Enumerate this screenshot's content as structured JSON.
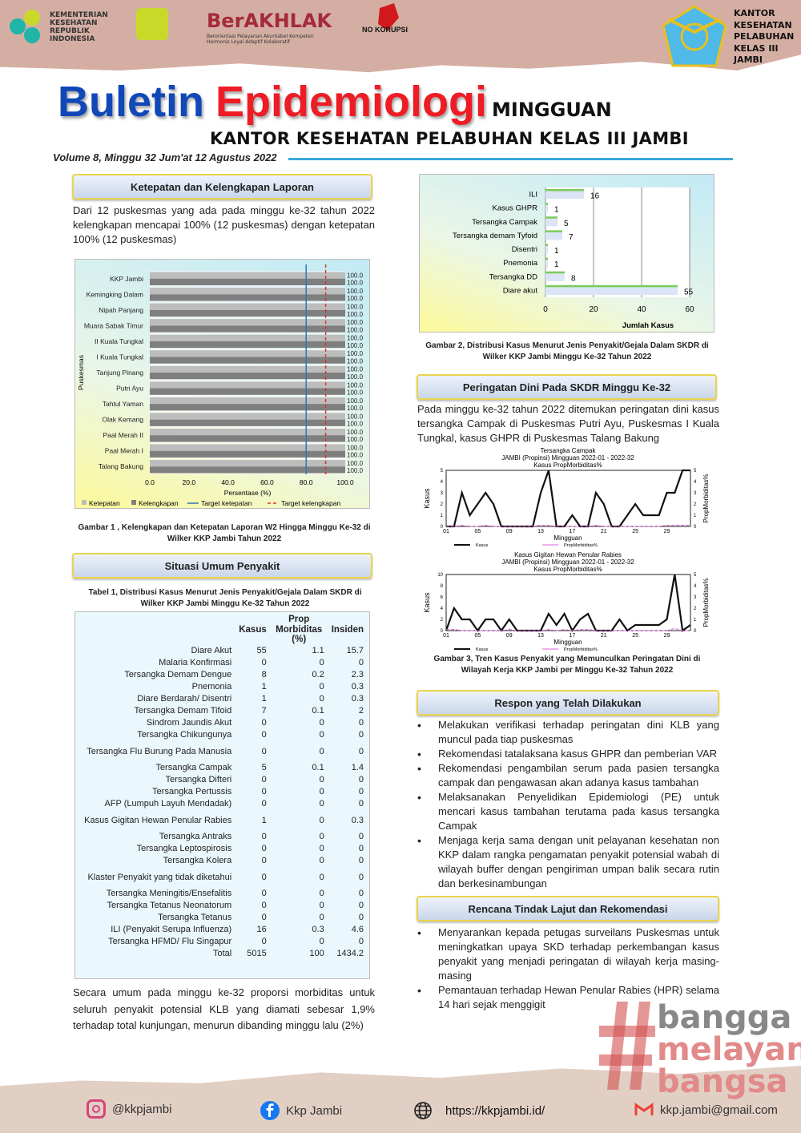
{
  "header": {
    "ministry": "KEMENTERIAN KESEHATAN REPUBLIK INDONESIA",
    "berakhlak": "BerAKHLAK",
    "berakhlak_tagline": "Berorientasi Pelayanan Akuntabel Kompeten Harmonis Loyal Adaptif Kolaboratif",
    "nokorupsi": "NO KORUPSI",
    "office_logo_text": "KANTOR KESEHATAN PELABUHAN KELAS III JAMBI",
    "title_a": "Buletin",
    "title_b": "Epidemiologi",
    "title_c": "MINGGUAN",
    "subtitle": "KANTOR KESEHATAN PELABUHAN KELAS III JAMBI",
    "volume": "Volume 8, Minggu 32 Jum'at 12 Agustus 2022"
  },
  "colors": {
    "title_blue": "#1048b8",
    "title_red": "#ee1c25",
    "header_bg": "#d5aea3",
    "accent_line": "#3aa8dc"
  },
  "left": {
    "sec1": "Ketepatan dan Kelengkapan Laporan",
    "para1": "Dari 12 puskesmas yang ada pada minggu ke-32 tahun 2022 kelengkapan mencapai 100% (12 puskesmas) dengan ketepatan 100% (12 puskesmas)",
    "cap1": "Gambar 1 ,  Kelengkapan dan Ketepatan Laporan W2 Hingga Minggu Ke-32 di Wilker KKP Jambi Tahun 2022",
    "sec2": "Situasi Umum Penyakit",
    "table_caption": "Tabel 1,    Distribusi Kasus Menurut Jenis Penyakit/Gejala Dalam SKDR di Wilker KKP Jambi Minggu Ke-32 Tahun 2022",
    "table": {
      "headers": [
        "",
        "Kasus",
        "Prop Morbiditas (%)",
        "Insiden"
      ],
      "rows": [
        [
          "Diare Akut",
          "55",
          "1.1",
          "15.7"
        ],
        [
          "Malaria Konfirmasi",
          "0",
          "0",
          "0"
        ],
        [
          "Tersangka Demam Dengue",
          "8",
          "0.2",
          "2.3"
        ],
        [
          "Pnemonia",
          "1",
          "0",
          "0.3"
        ],
        [
          "Diare Berdarah/ Disentri",
          "1",
          "0",
          "0.3"
        ],
        [
          "Tersangka Demam Tifoid",
          "7",
          "0.1",
          "2"
        ],
        [
          "Sindrom Jaundis Akut",
          "0",
          "0",
          "0"
        ],
        [
          "Tersangka Chikungunya",
          "0",
          "0",
          "0"
        ],
        [
          "Tersangka Flu Burung Pada Manusia",
          "0",
          "0",
          "0"
        ],
        [
          "Tersangka Campak",
          "5",
          "0.1",
          "1.4"
        ],
        [
          "Tersangka Difteri",
          "0",
          "0",
          "0"
        ],
        [
          "Tersangka Pertussis",
          "0",
          "0",
          "0"
        ],
        [
          "AFP (Lumpuh Layuh Mendadak)",
          "0",
          "0",
          "0"
        ],
        [
          "Kasus Gigitan Hewan Penular Rabies",
          "1",
          "0",
          "0.3"
        ],
        [
          "Tersangka Antraks",
          "0",
          "0",
          "0"
        ],
        [
          "Tersangka Leptospirosis",
          "0",
          "0",
          "0"
        ],
        [
          "Tersangka Kolera",
          "0",
          "0",
          "0"
        ],
        [
          "Klaster Penyakit yang tidak diketahui",
          "0",
          "0",
          "0"
        ],
        [
          "Tersangka Meningitis/Ensefalitis",
          "0",
          "0",
          "0"
        ],
        [
          "Tersangka Tetanus Neonatorum",
          "0",
          "0",
          "0"
        ],
        [
          "Tersangka Tetanus",
          "0",
          "0",
          "0"
        ],
        [
          "ILI (Penyakit Serupa Influenza)",
          "16",
          "0.3",
          "4.6"
        ],
        [
          "Tersangka HFMD/ Flu Singapur",
          "0",
          "0",
          "0"
        ],
        [
          "Total",
          "5015",
          "100",
          "1434.2"
        ]
      ]
    },
    "para2": "Secara umum pada minggu ke-32 proporsi morbiditas untuk seluruh penyakit potensial KLB yang diamati sebesar 1,9% terhadap total kunjungan, menurun dibanding minggu lalu (2%)"
  },
  "right": {
    "cap2": "Gambar 2, Distribusi Kasus Menurut Jenis Penyakit/Gejala Dalam SKDR di Wilker  KKP Jambi  Minggu Ke-32 Tahun 2022",
    "sec3": "Peringatan Dini Pada SKDR Minggu Ke-32",
    "para3": "Pada minggu ke-32 tahun 2022 ditemukan peringatan dini kasus tersangka Campak di Puskesmas Putri Ayu, Puskesmas I Kuala Tungkal, kasus GHPR di Puskesmas Talang Bakung",
    "cap3": "Gambar 3, Tren Kasus Penyakit yang Memunculkan Peringatan Dini  di Wilayah Kerja KKP Jambi per Minggu Ke-32 Tahun 2022",
    "sec4": "Respon yang Telah Dilakukan",
    "respon": [
      "Melakukan verifikasi terhadap peringatan dini KLB yang muncul pada tiap puskesmas",
      "Rekomendasi tatalaksana kasus GHPR dan pemberian VAR",
      "Rekomendasi pengambilan serum pada pasien tersangka campak dan pengawasan akan adanya kasus tambahan",
      "Melaksanakan Penyelidikan Epidemiologi (PE) untuk mencari kasus tambahan terutama pada kasus tersangka Campak",
      "Menjaga kerja sama dengan unit pelayanan kesehatan non KKP dalam rangka pengamatan penyakit potensial wabah di wilayah buffer dengan pengiriman umpan balik secara rutin dan berkesinambungan"
    ],
    "sec5": "Rencana Tindak Lajut dan Rekomendasi",
    "rencana": [
      "Menyarankan kepada petugas surveilans Puskesmas untuk meningkatkan upaya SKD terhadap perkembangan kasus penyakit yang menjadi peringatan di wilayah kerja masing-masing",
      "Pemantauan terhadap Hewan Penular Rabies (HPR) selama 14 hari sejak menggigit"
    ]
  },
  "watermark": {
    "line1": "bangga",
    "line2": "melayani",
    "line3": "bangsa"
  },
  "footer": {
    "instagram": "@kkpjambi",
    "facebook": "Kkp Jambi",
    "website": "https://kkpjambi.id/",
    "email": "kkp.jambi@gmail.com"
  },
  "chart_data": [
    {
      "type": "bar",
      "orientation": "horizontal",
      "categories": [
        "KKP Jambi",
        "Kemingking Dalam",
        "Nipah Panjang",
        "Muara Sabak Timur",
        "II Kuala Tungkal",
        "I Kuala Tungkal",
        "Tanjung Pinang",
        "Putri Ayu",
        "Tahtul Yaman",
        "Olak Kemang",
        "Paal Merah II",
        "Paal Merah I",
        "Talang Bakung"
      ],
      "series": [
        {
          "name": "Ketepatan",
          "color": "#bdbdbd",
          "values": [
            100,
            100,
            100,
            100,
            100,
            100,
            100,
            100,
            100,
            100,
            100,
            100,
            100
          ]
        },
        {
          "name": "Kelengkapan",
          "color": "#7f7f7f",
          "values": [
            100,
            100,
            100,
            100,
            100,
            100,
            100,
            100,
            100,
            100,
            100,
            100,
            100
          ]
        }
      ],
      "reference_lines": [
        {
          "name": "Target ketepatan",
          "value": 80,
          "color": "#2e75b6",
          "style": "solid"
        },
        {
          "name": "Target kelengkapan",
          "value": 90,
          "color": "#e03030",
          "style": "dashed"
        }
      ],
      "xlabel": "Persentase (%)",
      "ylabel": "Puskesmas",
      "xlim": [
        0,
        100
      ],
      "xticks": [
        "0.0",
        "20.0",
        "40.0",
        "60.0",
        "80.0",
        "100.0"
      ],
      "legend": "bottom",
      "data_labels": "100.0"
    },
    {
      "type": "bar",
      "orientation": "horizontal",
      "categories": [
        "ILI",
        "Kasus GHPR",
        "Tersangka Campak",
        "Tersangka demam Tyfoid",
        "Disentri",
        "Pnemonia",
        "Tersangka DD",
        "Diare akut"
      ],
      "values": [
        16,
        1,
        5,
        7,
        1,
        1,
        8,
        55
      ],
      "xlabel": "Jumlah Kasus",
      "xlim": [
        0,
        60
      ],
      "xticks": [
        "0",
        "20",
        "40",
        "60"
      ],
      "grid": true
    },
    {
      "type": "line",
      "title": "Tersangka Campak",
      "subtitle": "JAMBI (Propinsi) Mingguan 2022-01 - 2022-32",
      "subtitle2": "Kasus PropMorbiditas%",
      "xlabel": "Mingguan",
      "ylabel": "Kasus",
      "y2label": "PropMorbiditas%",
      "ylim": [
        0,
        5
      ],
      "y2lim": [
        0,
        5
      ],
      "xticks": [
        "01",
        "05",
        "09",
        "13",
        "17",
        "21",
        "25",
        "29"
      ],
      "series": [
        {
          "name": "Kasus",
          "color": "#111111",
          "values": [
            0,
            0,
            3,
            1,
            2,
            3,
            2,
            0,
            0,
            0,
            0,
            0,
            3,
            5,
            0,
            0,
            1,
            0,
            0,
            3,
            2,
            0,
            0,
            1,
            2,
            1,
            1,
            1,
            3,
            3,
            5,
            5
          ]
        },
        {
          "name": "PropMorbiditas%",
          "color": "#e060e0",
          "values": [
            0,
            0,
            0.1,
            0,
            0,
            0.1,
            0,
            0,
            0,
            0,
            0,
            0,
            0.1,
            0.1,
            0,
            0,
            0,
            0,
            0,
            0.1,
            0,
            0,
            0,
            0,
            0,
            0,
            0,
            0,
            0.1,
            0.1,
            0.1,
            0.1
          ]
        }
      ]
    },
    {
      "type": "line",
      "title": "Kasus Gigitan Hewan Penular Rabies",
      "subtitle": "JAMBI (Propinsi) Mingguan 2022-01 - 2022-32",
      "subtitle2": "Kasus PropMorbiditas%",
      "xlabel": "Mingguan",
      "ylabel": "Kasus",
      "y2label": "PropMorbiditas%",
      "ylim": [
        0,
        10
      ],
      "y2lim": [
        0,
        5
      ],
      "xticks": [
        "01",
        "05",
        "09",
        "13",
        "17",
        "21",
        "25",
        "29"
      ],
      "series": [
        {
          "name": "Kasus",
          "color": "#111111",
          "values": [
            0,
            4,
            2,
            2,
            0,
            2,
            2,
            0,
            2,
            0,
            0,
            0,
            0,
            3,
            1,
            3,
            0,
            2,
            3,
            0,
            0,
            0,
            2,
            0,
            1,
            1,
            1,
            1,
            2,
            10,
            0,
            1
          ]
        },
        {
          "name": "PropMorbiditas%",
          "color": "#e060e0",
          "values": [
            0.1,
            0.1,
            0,
            0,
            0,
            0,
            0,
            0,
            0.1,
            0,
            0,
            0,
            0,
            0.1,
            0,
            0.1,
            0,
            0.1,
            0.1,
            0,
            0,
            0,
            0,
            0,
            0,
            0,
            0,
            0,
            0,
            0.2,
            0,
            0
          ]
        }
      ]
    }
  ]
}
